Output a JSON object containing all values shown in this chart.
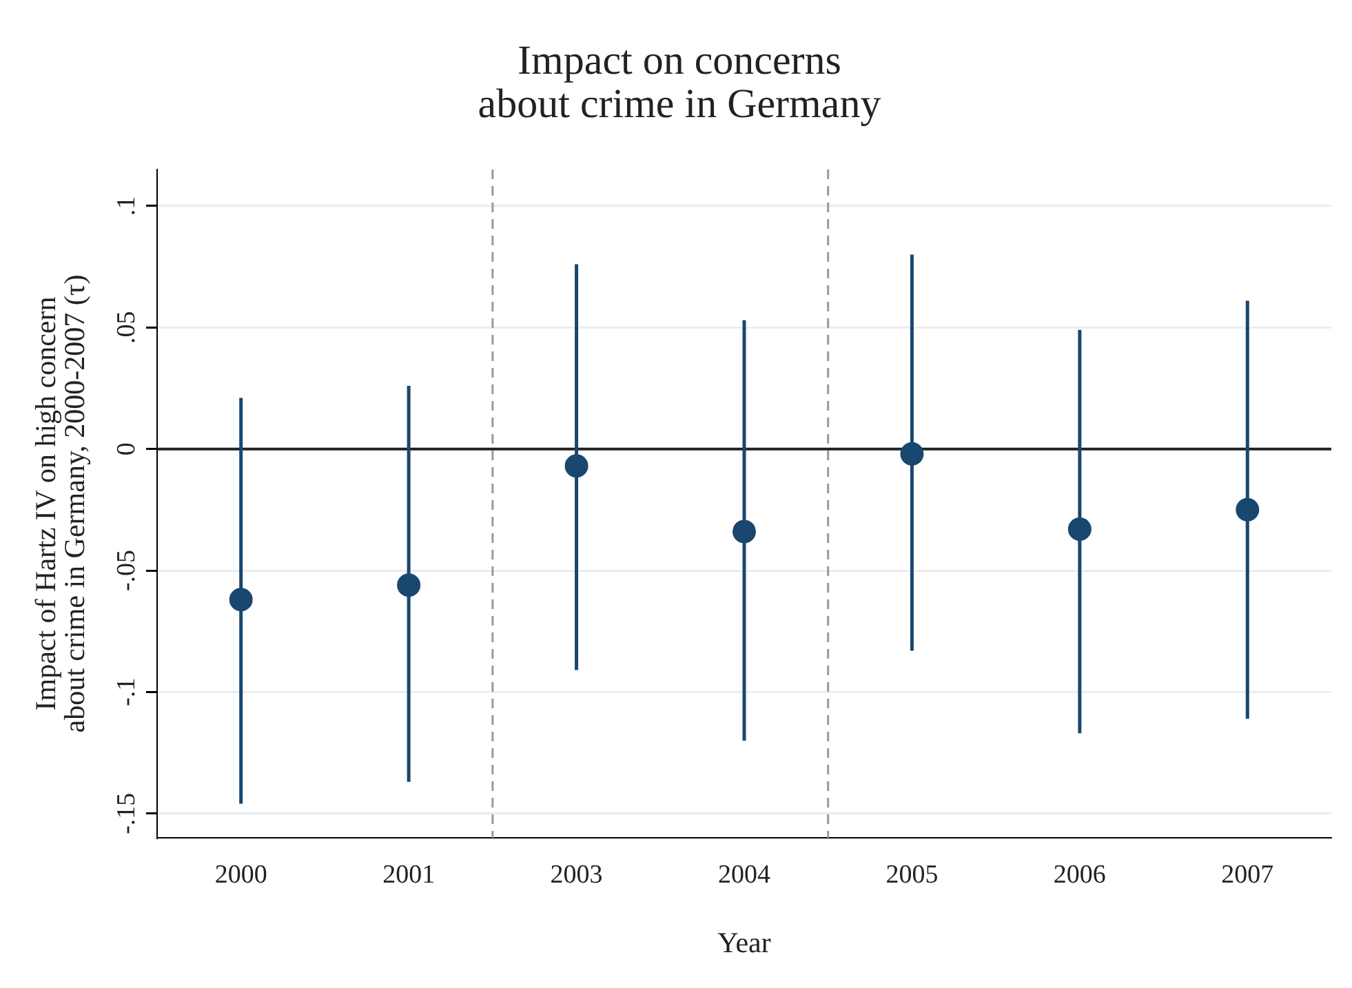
{
  "chart_data": {
    "type": "scatter",
    "title": "Impact on concerns about crime in Germany",
    "xlabel": "Year",
    "ylabel": "Impact of Hartz IV on high concern about crime in Germany, 2000-2007 (τ)",
    "categories": [
      "2000",
      "2001",
      "2003",
      "2004",
      "2005",
      "2006",
      "2007"
    ],
    "series": [
      {
        "color": "#1a476f",
        "values": [
          -0.062,
          -0.056,
          -0.007,
          -0.034,
          -0.002,
          -0.033,
          -0.025
        ],
        "errors": [
          [
            -0.146,
            0.021
          ],
          [
            -0.137,
            0.026
          ],
          [
            -0.091,
            0.076
          ],
          [
            -0.12,
            0.053
          ],
          [
            -0.083,
            0.08
          ],
          [
            -0.117,
            0.049
          ],
          [
            -0.111,
            0.061
          ]
        ]
      }
    ],
    "ylim": [
      -0.16,
      0.115
    ],
    "yticks": [
      {
        "value": -0.15,
        "label": "-.15"
      },
      {
        "value": -0.1,
        "label": "-.1"
      },
      {
        "value": -0.05,
        "label": "-.05"
      },
      0,
      {
        "value": 0.05,
        "label": ".05"
      },
      {
        "value": 0.1,
        "label": ".1"
      }
    ],
    "ref_lines": [
      {
        "axis": "y",
        "value": 0,
        "color": "#222222",
        "line_style": "solid"
      }
    ],
    "grid": "y",
    "legend": false,
    "marker": "circle"
  }
}
